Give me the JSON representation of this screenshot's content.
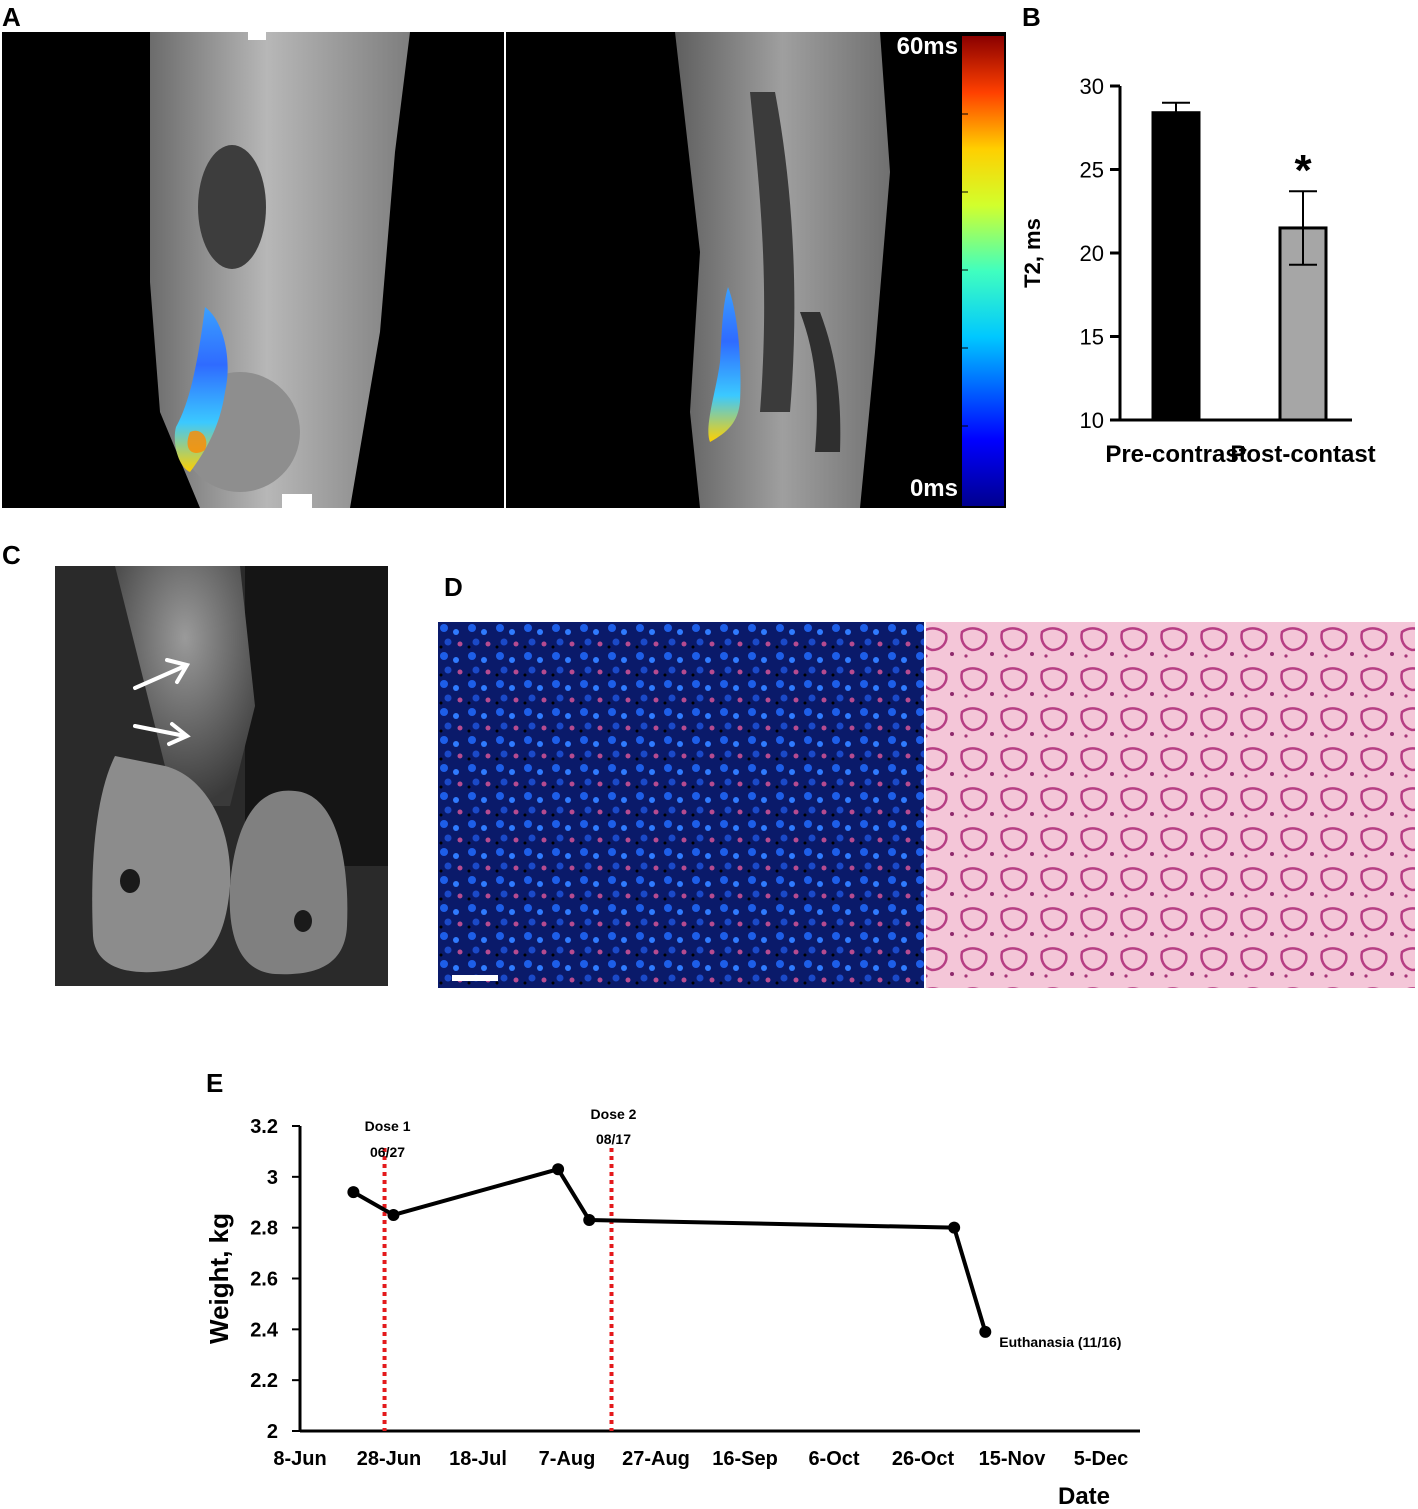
{
  "panels": {
    "a": {
      "letter": "A",
      "colorbar": {
        "max_label": "60ms",
        "min_label": "0ms"
      }
    },
    "b": {
      "letter": "B"
    },
    "c": {
      "letter": "C"
    },
    "d": {
      "letter": "D"
    },
    "e": {
      "letter": "E",
      "dose1_label_line1": "Dose 1",
      "dose1_label_line2": "06/27",
      "dose2_label_line1": "Dose 2",
      "dose2_label_line2": "08/17",
      "euthanasia_label": "Euthanasia (11/16)"
    }
  },
  "chart_data": [
    {
      "type": "bar",
      "panel": "B",
      "ylabel": "T2, ms",
      "xlabel": "",
      "categories": [
        "Pre-contrast",
        "Post-contast"
      ],
      "values": [
        28.4,
        21.5
      ],
      "error": [
        0.6,
        2.2
      ],
      "significance": [
        "",
        "*"
      ],
      "colors": [
        "#000000",
        "#a6a6a6"
      ],
      "ylim": [
        10,
        30
      ],
      "yticks": [
        10,
        15,
        20,
        25,
        30
      ],
      "grid": false
    },
    {
      "type": "line",
      "panel": "E",
      "xlabel": "Date",
      "ylabel": "Weight, kg",
      "x": [
        "6/20",
        "6/29",
        "8/5",
        "8/12",
        "11/2",
        "11/9"
      ],
      "y": [
        2.94,
        2.85,
        3.03,
        2.83,
        2.8,
        2.39
      ],
      "xticks": [
        "8-Jun",
        "28-Jun",
        "18-Jul",
        "7-Aug",
        "27-Aug",
        "16-Sep",
        "6-Oct",
        "26-Oct",
        "15-Nov",
        "5-Dec"
      ],
      "yticks": [
        "2",
        "2.2",
        "2.4",
        "2.6",
        "2.8",
        "3",
        "3.2"
      ],
      "ylim": [
        2,
        3.2
      ],
      "vlines": [
        {
          "x": "6/27",
          "color": "#e41a1c",
          "style": "dotted"
        },
        {
          "x": "8/17",
          "color": "#e41a1c",
          "style": "dotted"
        }
      ],
      "grid": false
    }
  ]
}
